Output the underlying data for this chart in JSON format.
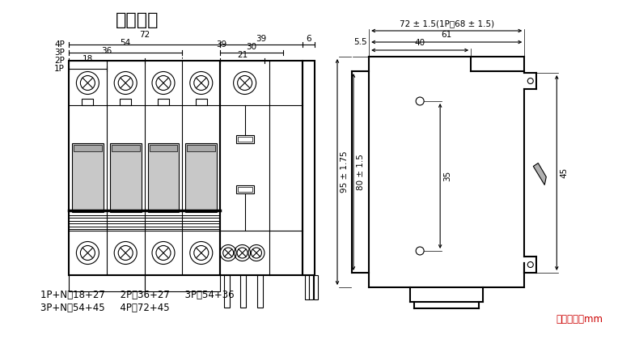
{
  "title": "安装尺寸",
  "bg_color": "#ffffff",
  "line_color": "#000000",
  "red_color": "#cc0000",
  "title_fontsize": 16,
  "footer_text1": "1P+N：18+27     2P：36+27     3P：54+36",
  "footer_text2": "3P+N：54+45     4P：72+45",
  "footer_red": "尺寸单位：mm",
  "right_dims": {
    "top_label": "72 ± 1.5(1P为68 ± 1.5)",
    "d1": "5.5",
    "d2": "61",
    "d3": "40",
    "d4": "95 ± 1.75",
    "d5": "80 ± 1.5",
    "d6": "35",
    "d7": "45"
  }
}
